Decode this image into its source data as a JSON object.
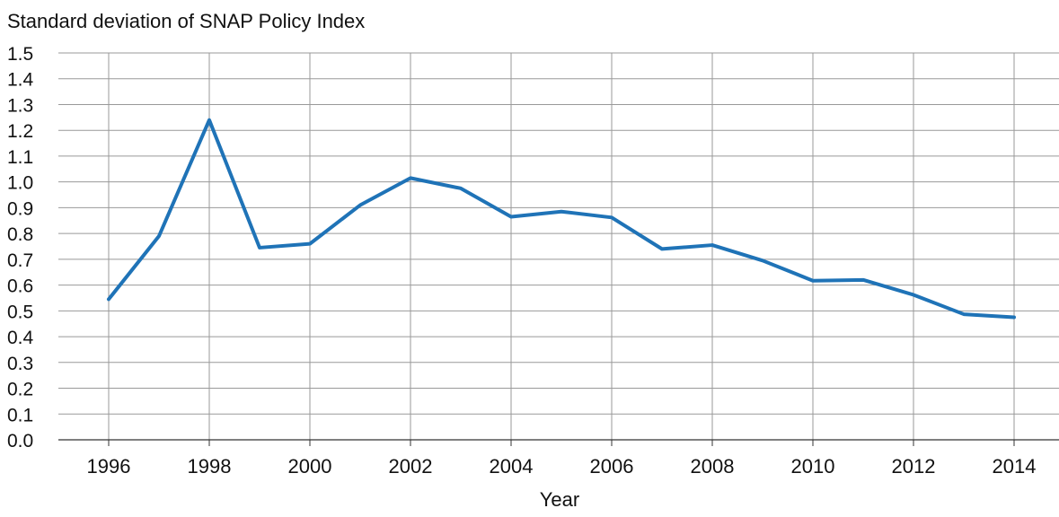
{
  "chart_data": {
    "type": "line",
    "title": "Standard deviation of SNAP Policy Index",
    "xlabel": "Year",
    "ylabel": "",
    "ylim": [
      0,
      1.5
    ],
    "yticks": [
      "0.0",
      "0.1",
      "0.2",
      "0.3",
      "0.4",
      "0.5",
      "0.6",
      "0.7",
      "0.8",
      "0.9",
      "1.0",
      "1.1",
      "1.2",
      "1.3",
      "1.4",
      "1.5"
    ],
    "xticks": [
      "1996",
      "1998",
      "2000",
      "2002",
      "2004",
      "2006",
      "2008",
      "2010",
      "2012",
      "2014"
    ],
    "grid": true,
    "legend": "none",
    "x": [
      1996,
      1997,
      1998,
      1999,
      2000,
      2001,
      2002,
      2003,
      2004,
      2005,
      2006,
      2007,
      2008,
      2009,
      2010,
      2011,
      2012,
      2013,
      2014
    ],
    "series": [
      {
        "color": "#1f73b7",
        "values": [
          0.545,
          0.79,
          1.24,
          0.745,
          0.76,
          0.91,
          1.015,
          0.975,
          0.865,
          0.885,
          0.862,
          0.74,
          0.755,
          0.695,
          0.617,
          0.62,
          0.562,
          0.487,
          0.475
        ]
      }
    ]
  }
}
